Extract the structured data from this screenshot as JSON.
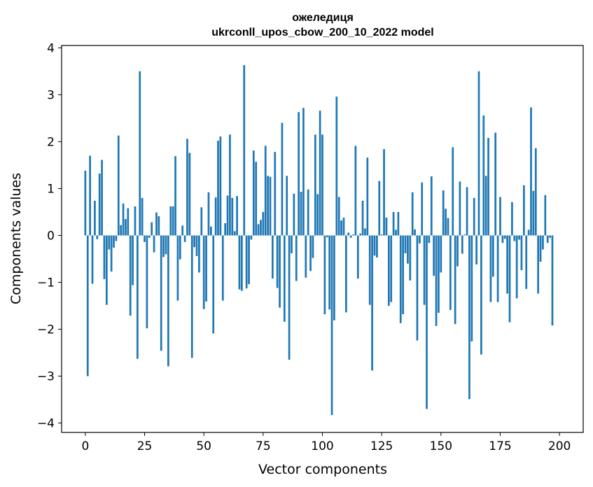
{
  "chart_data": {
    "type": "bar",
    "title": "ожеледиця",
    "subtitle": "ukrconll_upos_cbow_200_10_2022 model",
    "xlabel": "Vector components",
    "ylabel": "Components values",
    "xlim": [
      -10,
      210
    ],
    "ylim": [
      -4.2,
      4.05
    ],
    "xticks": [
      0,
      25,
      50,
      75,
      100,
      125,
      150,
      175,
      200
    ],
    "yticks": [
      -4,
      -3,
      -2,
      -1,
      0,
      1,
      2,
      3,
      4
    ],
    "bar_color": "#1f77b4",
    "grid": false,
    "values": [
      1.38,
      -3.0,
      1.7,
      -1.03,
      0.74,
      -0.08,
      1.32,
      1.61,
      -0.93,
      -1.48,
      -0.3,
      -0.77,
      -0.26,
      -0.12,
      2.13,
      0.22,
      0.68,
      0.35,
      0.58,
      -1.71,
      -1.06,
      0.62,
      -2.63,
      3.5,
      0.8,
      -0.14,
      -1.98,
      -0.05,
      0.28,
      -0.36,
      0.49,
      0.41,
      -2.46,
      -0.46,
      -0.4,
      -2.79,
      0.62,
      0.62,
      1.69,
      -1.39,
      -0.51,
      0.21,
      -0.14,
      2.06,
      1.76,
      -2.61,
      -0.25,
      -0.44,
      -0.79,
      0.6,
      -1.57,
      -1.41,
      0.92,
      0.19,
      -2.09,
      0.81,
      2.02,
      2.11,
      -1.39,
      0.26,
      0.85,
      2.15,
      0.8,
      0.09,
      0.84,
      -1.15,
      -1.18,
      3.63,
      -1.13,
      -1.04,
      -0.09,
      1.81,
      1.57,
      0.24,
      0.33,
      0.5,
      1.91,
      1.27,
      1.25,
      -0.92,
      1.78,
      -1.12,
      -1.54,
      2.4,
      -1.84,
      1.27,
      -2.65,
      -0.38,
      0.89,
      -0.97,
      2.63,
      0.93,
      2.72,
      -0.9,
      0.98,
      -0.76,
      -0.48,
      2.15,
      0.88,
      2.66,
      2.15,
      -1.68,
      -0.04,
      -1.58,
      -3.83,
      -1.81,
      2.96,
      0.82,
      0.32,
      0.38,
      -1.64,
      0.06,
      -0.05,
      0.02,
      1.91,
      -0.92,
      0.04,
      0.74,
      0.15,
      1.66,
      -1.48,
      -2.88,
      -0.43,
      -0.47,
      1.16,
      0.02,
      1.84,
      0.38,
      -1.5,
      -1.42,
      0.5,
      0.12,
      0.5,
      -1.87,
      -1.68,
      -0.38,
      -0.6,
      -0.96,
      0.92,
      0.13,
      -2.24,
      -0.17,
      1.13,
      -1.48,
      -3.7,
      -0.16,
      1.26,
      -0.86,
      -1.93,
      -1.65,
      -0.79,
      0.96,
      0.57,
      0.37,
      -1.59,
      1.88,
      -1.89,
      -0.66,
      1.15,
      -0.39,
      0.02,
      1.03,
      -3.49,
      -2.26,
      0.8,
      -0.62,
      3.5,
      -2.54,
      2.56,
      1.27,
      2.08,
      -1.42,
      -0.88,
      2.19,
      -1.42,
      0.82,
      -0.16,
      -0.07,
      -1.24,
      -1.85,
      0.71,
      -0.12,
      -1.34,
      -0.09,
      -0.74,
      1.07,
      -1.14,
      0.12,
      2.73,
      0.95,
      1.86,
      -1.24,
      -0.56,
      -0.3,
      0.86,
      -0.16,
      -0.05,
      -1.92
    ]
  }
}
